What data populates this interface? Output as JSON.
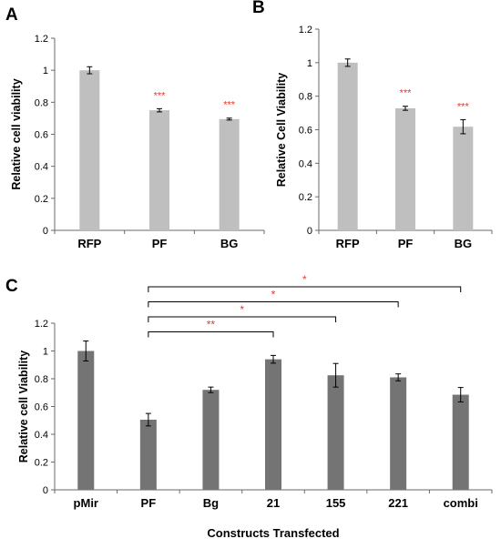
{
  "panel_labels": [
    "A",
    "B",
    "C"
  ],
  "chart_data": [
    {
      "panel": "A",
      "type": "bar",
      "title": "",
      "xlabel": "",
      "ylabel": "Relative cell viability",
      "ylim": [
        0,
        1.2
      ],
      "ytick_step": 0.2,
      "yticks": [
        "0",
        "0.2",
        "0.4",
        "0.6",
        "0.8",
        "1",
        "1.2"
      ],
      "categories": [
        "RFP",
        "PF",
        "BG"
      ],
      "values": [
        1.0,
        0.75,
        0.695
      ],
      "errors": [
        0.022,
        0.01,
        0.006
      ],
      "annotations": [
        "",
        "***",
        "***"
      ],
      "bar_color": "#bfbfbf",
      "annotation_color": "#e03b2f",
      "grid": false
    },
    {
      "panel": "B",
      "type": "bar",
      "title": "",
      "xlabel": "",
      "ylabel": "Relative Cell Viability",
      "ylim": [
        0,
        1.2
      ],
      "ytick_step": 0.2,
      "yticks": [
        "0",
        "0.2",
        "0.4",
        "0.6",
        "0.8",
        "1",
        "1.2"
      ],
      "categories": [
        "RFP",
        "PF",
        "BG"
      ],
      "values": [
        1.0,
        0.728,
        0.618
      ],
      "errors": [
        0.022,
        0.012,
        0.042
      ],
      "annotations": [
        "",
        "***",
        "***"
      ],
      "bar_color": "#bfbfbf",
      "annotation_color": "#e03b2f",
      "grid": false
    },
    {
      "panel": "C",
      "type": "bar",
      "title": "",
      "xlabel": "Constructs Transfected",
      "ylabel": "Relative cell Viability",
      "ylim": [
        0,
        1.2
      ],
      "ytick_step": 0.2,
      "yticks": [
        "0",
        "0.2",
        "0.4",
        "0.6",
        "0.8",
        "1",
        "1.2"
      ],
      "categories": [
        "pMir",
        "PF",
        "Bg",
        "21",
        "155",
        "221",
        "combi"
      ],
      "values": [
        1.0,
        0.505,
        0.72,
        0.94,
        0.825,
        0.81,
        0.685
      ],
      "errors": [
        0.072,
        0.045,
        0.02,
        0.028,
        0.085,
        0.025,
        0.052
      ],
      "bar_color": "#747474",
      "annotation_color": "#e03b2f",
      "grid": false,
      "comparisons": [
        {
          "from": "PF",
          "to": "combi",
          "label": "*"
        },
        {
          "from": "PF",
          "to": "221",
          "label": "*"
        },
        {
          "from": "PF",
          "to": "155",
          "label": "*"
        },
        {
          "from": "PF",
          "to": "21",
          "label": "**"
        }
      ]
    }
  ]
}
